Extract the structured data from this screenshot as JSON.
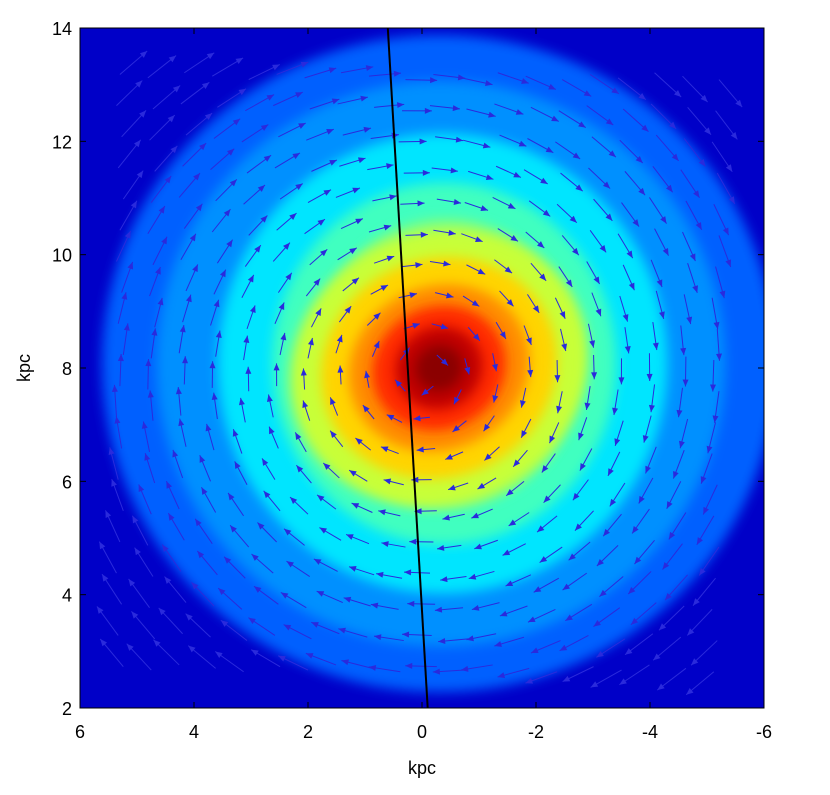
{
  "chart_data": {
    "type": "heatmap",
    "subtype": "density map with velocity vector overlay and straight line",
    "xlabel": "kpc",
    "ylabel": "kpc",
    "xlim": [
      6,
      -6
    ],
    "ylim": [
      2,
      14
    ],
    "x_ticks": [
      6,
      4,
      2,
      0,
      -2,
      -4,
      -6
    ],
    "y_ticks": [
      2,
      4,
      6,
      8,
      10,
      12,
      14
    ],
    "x_tick_labels": [
      "6",
      "4",
      "2",
      "0",
      "-2",
      "-4",
      "-6"
    ],
    "y_tick_labels": [
      "2",
      "4",
      "6",
      "8",
      "10",
      "12",
      "14"
    ],
    "x_axis_reversed": true,
    "colormap": "jet",
    "colors": {
      "peak": "#8b0000",
      "high": "#ff2a00",
      "mid_high": "#ffd400",
      "mid": "#7fff7f",
      "mid_low": "#00e5ff",
      "low": "#0060ff",
      "background": "#0000c8",
      "vectors": "#2a2adc",
      "line": "#000000"
    },
    "density_peak": {
      "x": -0.3,
      "y": 8.0
    },
    "density_core": {
      "semi_major_kpc": 1.4,
      "semi_minor_kpc": 0.8,
      "tilt_deg": 25
    },
    "density_extent_kpc": 5.8,
    "vector_field": {
      "pattern": "clockwise rotation about the density peak",
      "center": {
        "x": 0.0,
        "y": 7.9
      },
      "grid_spacing_kpc": 0.55,
      "x_range": [
        5.3,
        -5.3
      ],
      "y_range": [
        2.7,
        13.4
      ]
    },
    "line": {
      "x": [
        0.6,
        -0.1
      ],
      "y": [
        14,
        2
      ]
    }
  }
}
